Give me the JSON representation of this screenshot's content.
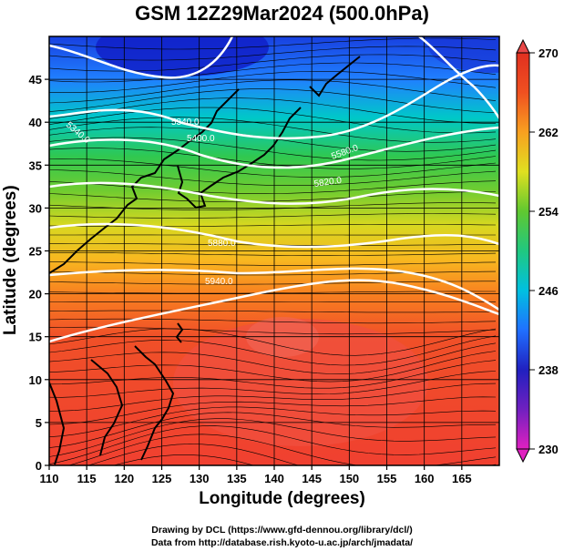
{
  "title": "GSM 12Z29Mar2024 (500.0hPa)",
  "x_axis": {
    "label": "Longitude (degrees)",
    "range": [
      110,
      170
    ],
    "ticks": [
      110,
      115,
      120,
      125,
      130,
      135,
      140,
      145,
      150,
      155,
      160,
      165
    ]
  },
  "y_axis": {
    "label": "Latitude  (degrees)",
    "range": [
      0,
      50
    ],
    "ticks": [
      0,
      5,
      10,
      15,
      20,
      25,
      30,
      35,
      40,
      45
    ]
  },
  "colorbar": {
    "range": [
      230,
      270
    ],
    "ticks": [
      230,
      238,
      246,
      254,
      262,
      270
    ],
    "colors": [
      "#e020c0",
      "#2020c0",
      "#2060ff",
      "#00c0e0",
      "#20c8a0",
      "#40c040",
      "#a0d020",
      "#f0e020",
      "#f8a020",
      "#f05020",
      "#e03020"
    ]
  },
  "contours": {
    "labels": [
      "5340.0",
      "5340.0",
      "5400.0",
      "5580.0",
      "5820.0",
      "5880.0",
      "5940.0"
    ]
  },
  "credits": {
    "line1": "Drawing by DCL (https://www.gfd-dennou.org/library/dcl/)",
    "line2": "Data from http://database.rish.kyoto-u.ac.jp/arch/jmadata/"
  }
}
